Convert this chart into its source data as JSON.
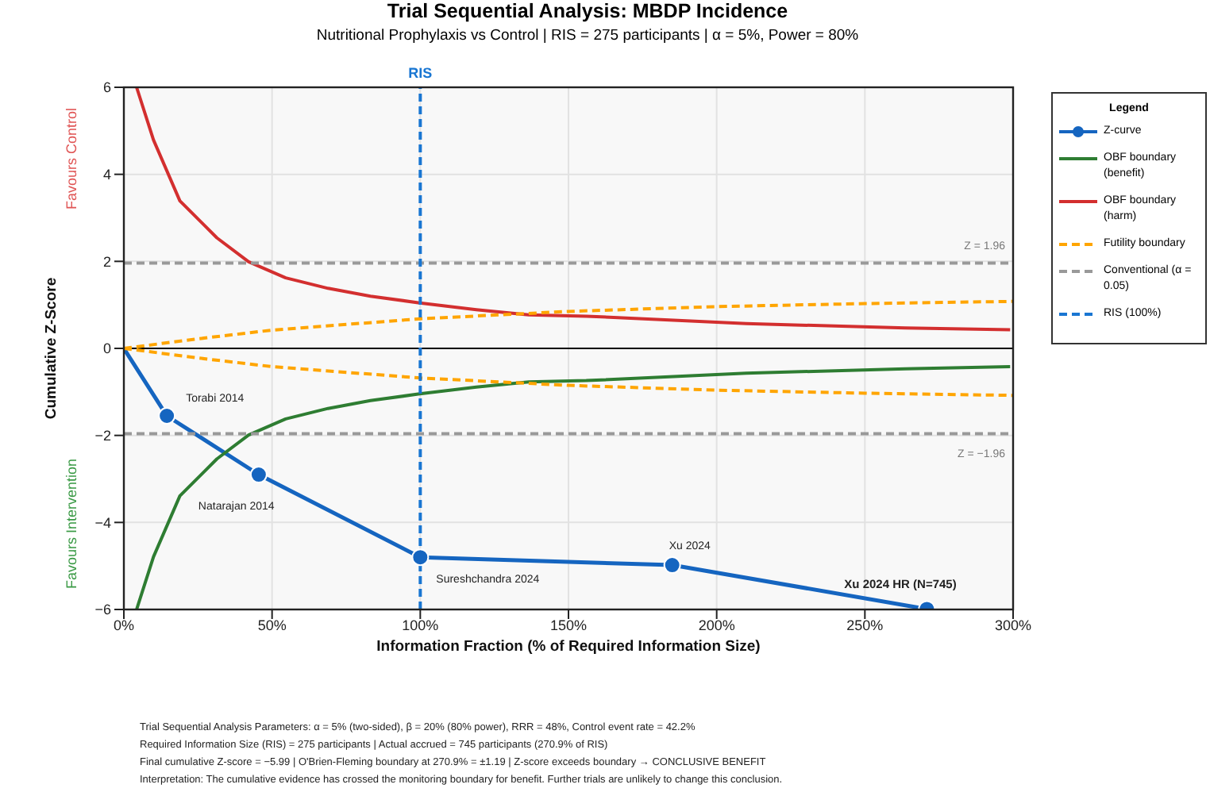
{
  "chart_data": {
    "type": "line",
    "title": "Trial Sequential Analysis: MBDP Incidence",
    "subtitle": "Nutritional Prophylaxis vs Control | RIS = 275 participants | α = 5%, Power = 80%",
    "xlabel": "Information Fraction (% of Required Information Size)",
    "ylabel": "Cumulative Z-Score",
    "legend_title": "Legend",
    "xlim": [
      0,
      300
    ],
    "xticks": [
      {
        "value": 0,
        "label": "0%"
      },
      {
        "value": 50,
        "label": "50%"
      },
      {
        "value": 100,
        "label": "100%"
      },
      {
        "value": 150,
        "label": "150%"
      },
      {
        "value": 200,
        "label": "200%"
      },
      {
        "value": 250,
        "label": "250%"
      },
      {
        "value": 300,
        "label": "300%"
      }
    ],
    "ylim": [
      -6,
      6
    ],
    "yticks": [
      {
        "value": -6,
        "label": "−6"
      },
      {
        "value": -4,
        "label": "−4"
      },
      {
        "value": -2,
        "label": "−2"
      },
      0,
      2,
      4,
      6
    ],
    "grid": true,
    "legend": "right",
    "marker": "none",
    "series": [
      {
        "name": "Z-curve",
        "color": "#1565c0",
        "marker": "circle",
        "x": [
          0,
          14.5,
          45.5,
          100,
          185,
          270.9
        ],
        "values": [
          0,
          -1.55,
          -2.9,
          -4.8,
          -4.98,
          -5.99
        ]
      },
      {
        "name": "OBF boundary (benefit)",
        "color": "#2e7d32",
        "x": [
          4.3,
          10,
          18.9,
          31.4,
          42.1,
          54.6,
          68.9,
          83.2,
          99.3,
          118.9,
          136.6,
          156,
          210,
          263.6,
          299
        ],
        "values": [
          -6,
          -4.79,
          -3.39,
          -2.54,
          -1.99,
          -1.62,
          -1.38,
          -1.2,
          -1.05,
          -0.89,
          -0.77,
          -0.74,
          -0.57,
          -0.47,
          -0.42
        ]
      },
      {
        "name": "OBF boundary (harm)",
        "color": "#d32f2f",
        "x": [
          4.3,
          10,
          18.9,
          31.4,
          42.1,
          54.6,
          68.9,
          83.2,
          99.3,
          118.9,
          136.6,
          156,
          210,
          263.6,
          299
        ],
        "values": [
          6,
          4.79,
          3.39,
          2.54,
          1.99,
          1.62,
          1.38,
          1.2,
          1.05,
          0.89,
          0.77,
          0.74,
          0.57,
          0.47,
          0.43
        ]
      },
      {
        "name": "Futility boundary",
        "color": "#ffa500",
        "line_style": "dashed",
        "x": [
          0,
          25,
          50,
          100,
          150,
          200,
          250,
          300
        ],
        "values": [
          0,
          0.22,
          0.42,
          0.68,
          0.85,
          0.96,
          1.03,
          1.08
        ]
      },
      {
        "color": "#ffa500",
        "line_style": "dashed",
        "x": [
          0,
          25,
          50,
          100,
          150,
          200,
          250,
          300
        ],
        "values": [
          0,
          -0.22,
          -0.42,
          -0.68,
          -0.85,
          -0.96,
          -1.03,
          -1.08
        ]
      },
      {
        "name": "Conventional (α = 0.05)",
        "color": "#999999",
        "line_style": "dashed",
        "x": [
          0,
          300
        ],
        "values": [
          1.96,
          1.96
        ]
      },
      {
        "color": "#999999",
        "line_style": "dashed",
        "x": [
          0,
          300
        ],
        "values": [
          -1.96,
          -1.96
        ]
      },
      {
        "name": "RIS (100%)",
        "color": "#1976d2",
        "line_style": "dashed",
        "x": [
          100,
          100
        ],
        "values": [
          -6,
          6
        ]
      }
    ],
    "ref_lines": [
      {
        "axis": "y",
        "value": 0,
        "color": "#000000",
        "line_style": "solid"
      }
    ],
    "annotations": [
      {
        "text": "Torabi 2014",
        "x": 14.5,
        "y": -1.55
      },
      {
        "text": "Natarajan 2014",
        "x": 45.5,
        "y": -2.9
      },
      {
        "text": "Sureshchandra 2024",
        "x": 100,
        "y": -4.8
      },
      {
        "text": "Xu 2024",
        "x": 185,
        "y": -4.98
      },
      {
        "text": "Xu 2024 HR (N=745)",
        "x": 270.9,
        "y": -5.99
      },
      {
        "text": "Z = 1.96",
        "x": 300,
        "y": 1.96
      },
      {
        "text": "Z = −1.96",
        "x": 300,
        "y": -1.96
      },
      {
        "text": "RIS",
        "x": 100,
        "y": 6
      },
      "Favours Control",
      "Favours Intervention",
      "Trial Sequential Analysis Parameters: α = 5% (two-sided), β = 20% (80% power), RRR = 48%, Control event rate = 42.2%",
      "Required Information Size (RIS) = 275 participants | Actual accrued = 745 participants (270.9% of RIS)",
      "Final cumulative Z-score = −5.99 | O'Brien-Fleming boundary at 270.9% = ±1.19 | Z-score exceeds boundary → CONCLUSIVE BENEFIT",
      "Interpretation: The cumulative evidence has crossed the monitoring boundary for benefit. Further trials are unlikely to change this conclusion."
    ]
  }
}
